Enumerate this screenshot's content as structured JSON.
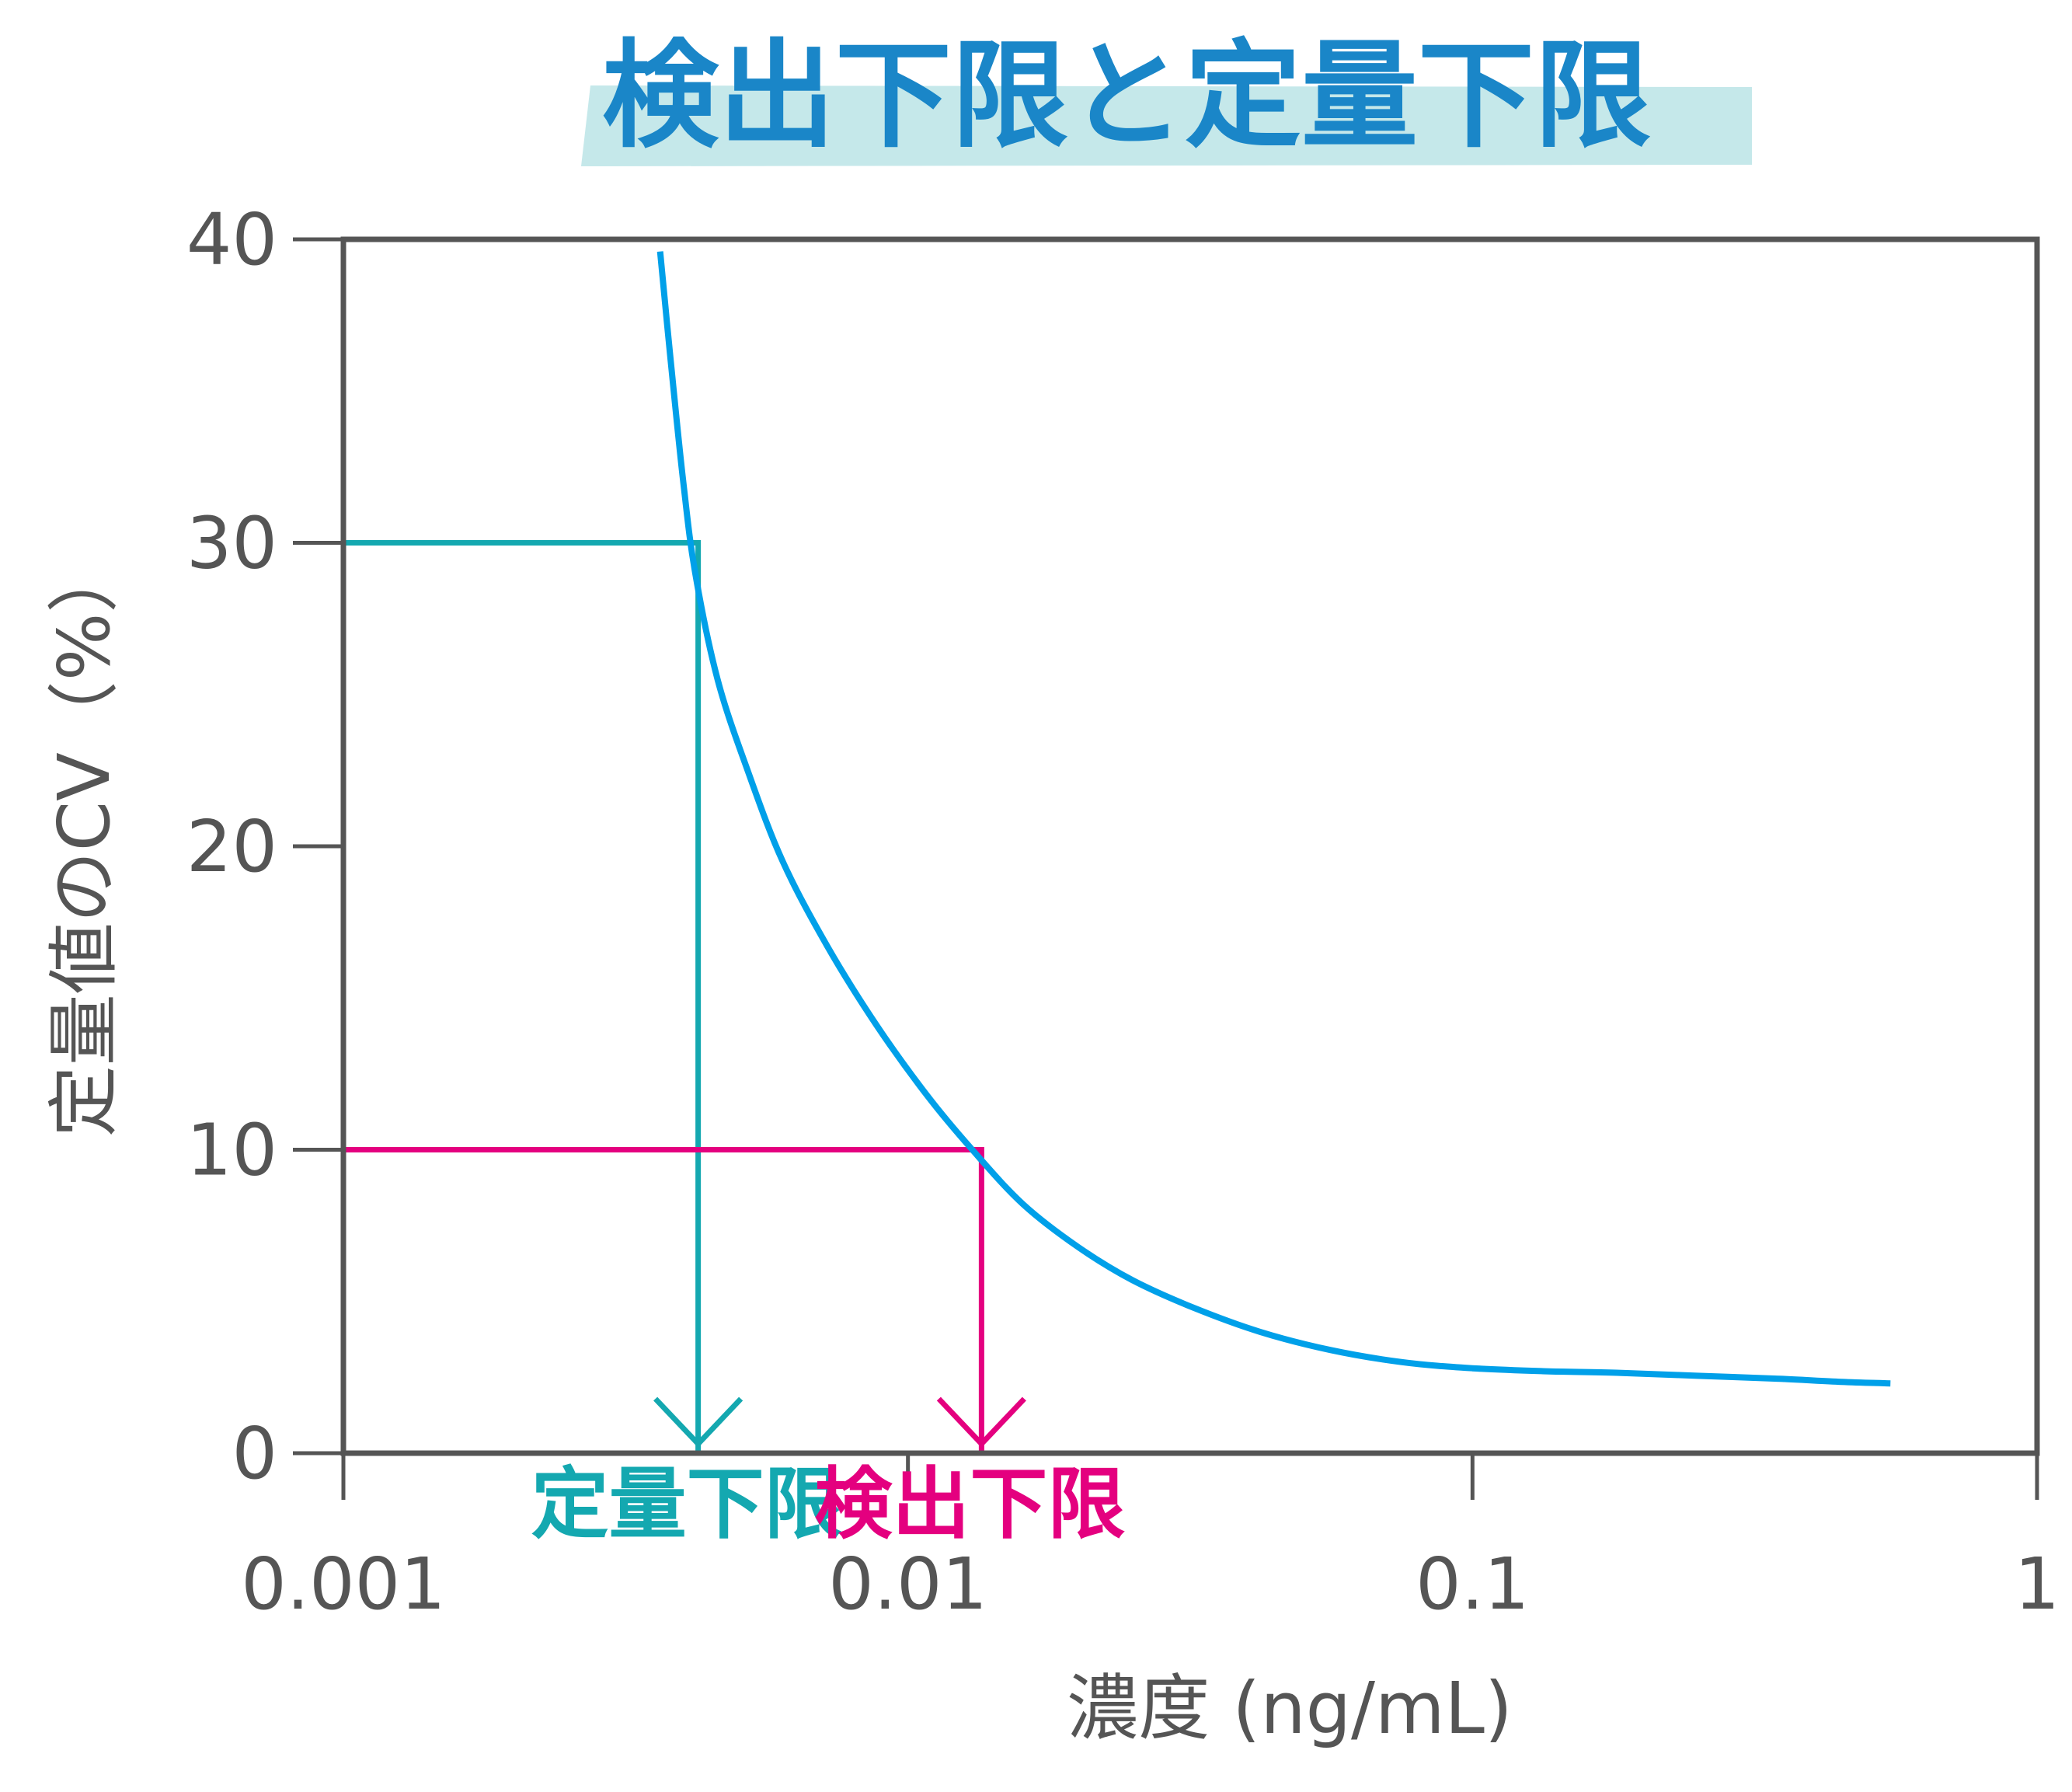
{
  "colors": {
    "axis": "#555555",
    "curve": "#00a0e9",
    "loq": "#14a8b0",
    "lod": "#e4007f",
    "title": "#1a86c8",
    "title_band": "#c5e8ea"
  },
  "chart_data": {
    "type": "line",
    "title": "検出下限と定量下限",
    "xlabel": "濃度 (ng/mL)",
    "ylabel": "定量値のCV（%）",
    "x_scale": "log",
    "xlim": [
      0.001,
      1
    ],
    "ylim": [
      0,
      40
    ],
    "x_ticks": [
      {
        "value": 0.001,
        "label": "0.001"
      },
      {
        "value": 0.01,
        "label": "0.01"
      },
      {
        "value": 0.1,
        "label": "0.1"
      },
      {
        "value": 1,
        "label": "1"
      }
    ],
    "y_ticks": [
      {
        "value": 0,
        "label": "0"
      },
      {
        "value": 10,
        "label": "10"
      },
      {
        "value": 20,
        "label": "20"
      },
      {
        "value": 30,
        "label": "30"
      },
      {
        "value": 40,
        "label": "40"
      }
    ],
    "grid": false,
    "series": [
      {
        "x": [
          0.00364,
          0.0038,
          0.004,
          0.0042,
          0.0046,
          0.0052,
          0.006,
          0.0072,
          0.0088,
          0.0108,
          0.013,
          0.016,
          0.02,
          0.025,
          0.032,
          0.042,
          0.056,
          0.075,
          0.1,
          0.135,
          0.18,
          0.25,
          0.35,
          0.45,
          0.55
        ],
        "y": [
          39.6,
          36.0,
          32.0,
          29.0,
          25.5,
          22.5,
          19.5,
          16.7,
          14.1,
          11.8,
          10.0,
          8.2,
          6.8,
          5.7,
          4.8,
          4.0,
          3.4,
          3.0,
          2.8,
          2.7,
          2.65,
          2.55,
          2.45,
          2.35,
          2.3
        ]
      }
    ],
    "annotations": [
      {
        "label": "定量下限",
        "y": 30,
        "x": 0.00425,
        "color_key": "loq"
      },
      {
        "label": "検出下限",
        "y": 10,
        "x": 0.0135,
        "color_key": "lod"
      }
    ]
  }
}
